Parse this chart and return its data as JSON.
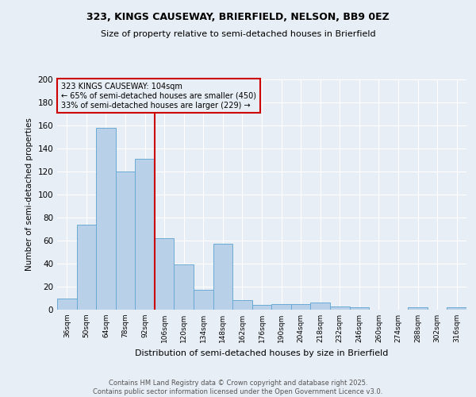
{
  "title_line1": "323, KINGS CAUSEWAY, BRIERFIELD, NELSON, BB9 0EZ",
  "title_line2": "Size of property relative to semi-detached houses in Brierfield",
  "xlabel": "Distribution of semi-detached houses by size in Brierfield",
  "ylabel": "Number of semi-detached properties",
  "footnote": "Contains HM Land Registry data © Crown copyright and database right 2025.\nContains public sector information licensed under the Open Government Licence v3.0.",
  "categories": [
    "36sqm",
    "50sqm",
    "64sqm",
    "78sqm",
    "92sqm",
    "106sqm",
    "120sqm",
    "134sqm",
    "148sqm",
    "162sqm",
    "176sqm",
    "190sqm",
    "204sqm",
    "218sqm",
    "232sqm",
    "246sqm",
    "260sqm",
    "274sqm",
    "288sqm",
    "302sqm",
    "316sqm"
  ],
  "values": [
    10,
    74,
    158,
    120,
    131,
    62,
    39,
    17,
    57,
    8,
    4,
    5,
    5,
    6,
    3,
    2,
    0,
    0,
    2,
    0,
    2
  ],
  "bar_color": "#b8d0e8",
  "bar_edge_color": "#6aaad4",
  "property_label": "323 KINGS CAUSEWAY: 104sqm",
  "pct_smaller": 65,
  "n_smaller": 450,
  "pct_larger": 33,
  "n_larger": 229,
  "vline_x_index": 5,
  "vline_color": "#cc0000",
  "ylim": [
    0,
    200
  ],
  "yticks": [
    0,
    20,
    40,
    60,
    80,
    100,
    120,
    140,
    160,
    180,
    200
  ],
  "bg_color": "#e8eef5",
  "grid_color": "#ffffff",
  "annotation_box_color": "#cc0000",
  "title_fontsize": 9,
  "subtitle_fontsize": 8,
  "footnote_fontsize": 6
}
